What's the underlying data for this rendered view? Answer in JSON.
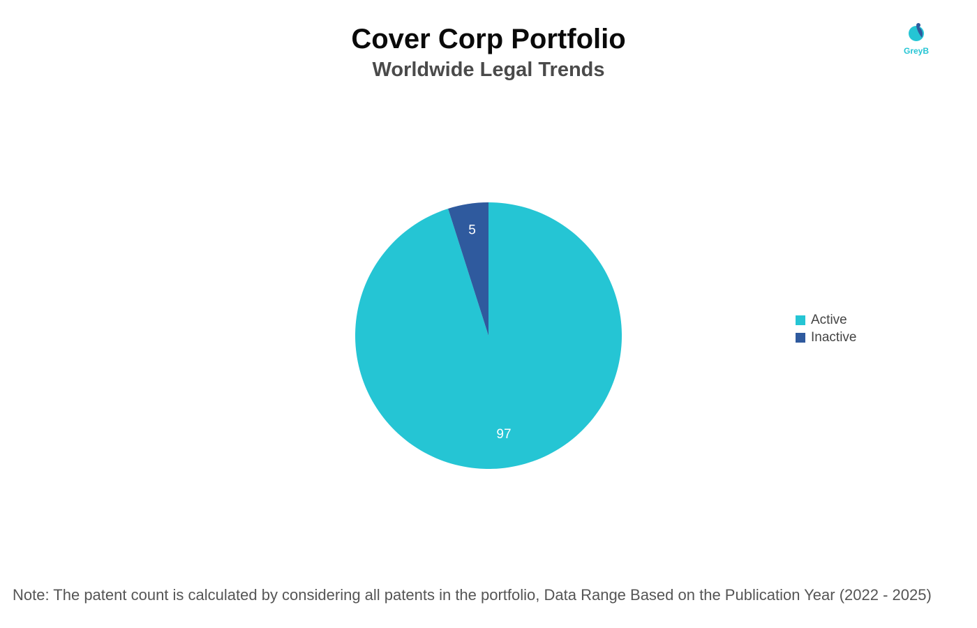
{
  "logo": {
    "text": "GreyB",
    "icon": "greyb-logo-icon",
    "color": "#25c5d4",
    "dark_color": "#2f5a9e"
  },
  "note": "Note: The patent count is calculated by considering all patents in the portfolio, Data Range Based on the Publication Year (2022 - 2025)",
  "chart_data": {
    "type": "pie",
    "title": "Cover Corp Portfolio",
    "subtitle": "Worldwide Legal Trends",
    "legend_position": "right",
    "slices": [
      {
        "name": "Active",
        "value": 97,
        "label": "97",
        "color": "#25c5d4"
      },
      {
        "name": "Inactive",
        "value": 5,
        "label": "5",
        "color": "#2f5a9e"
      }
    ]
  }
}
